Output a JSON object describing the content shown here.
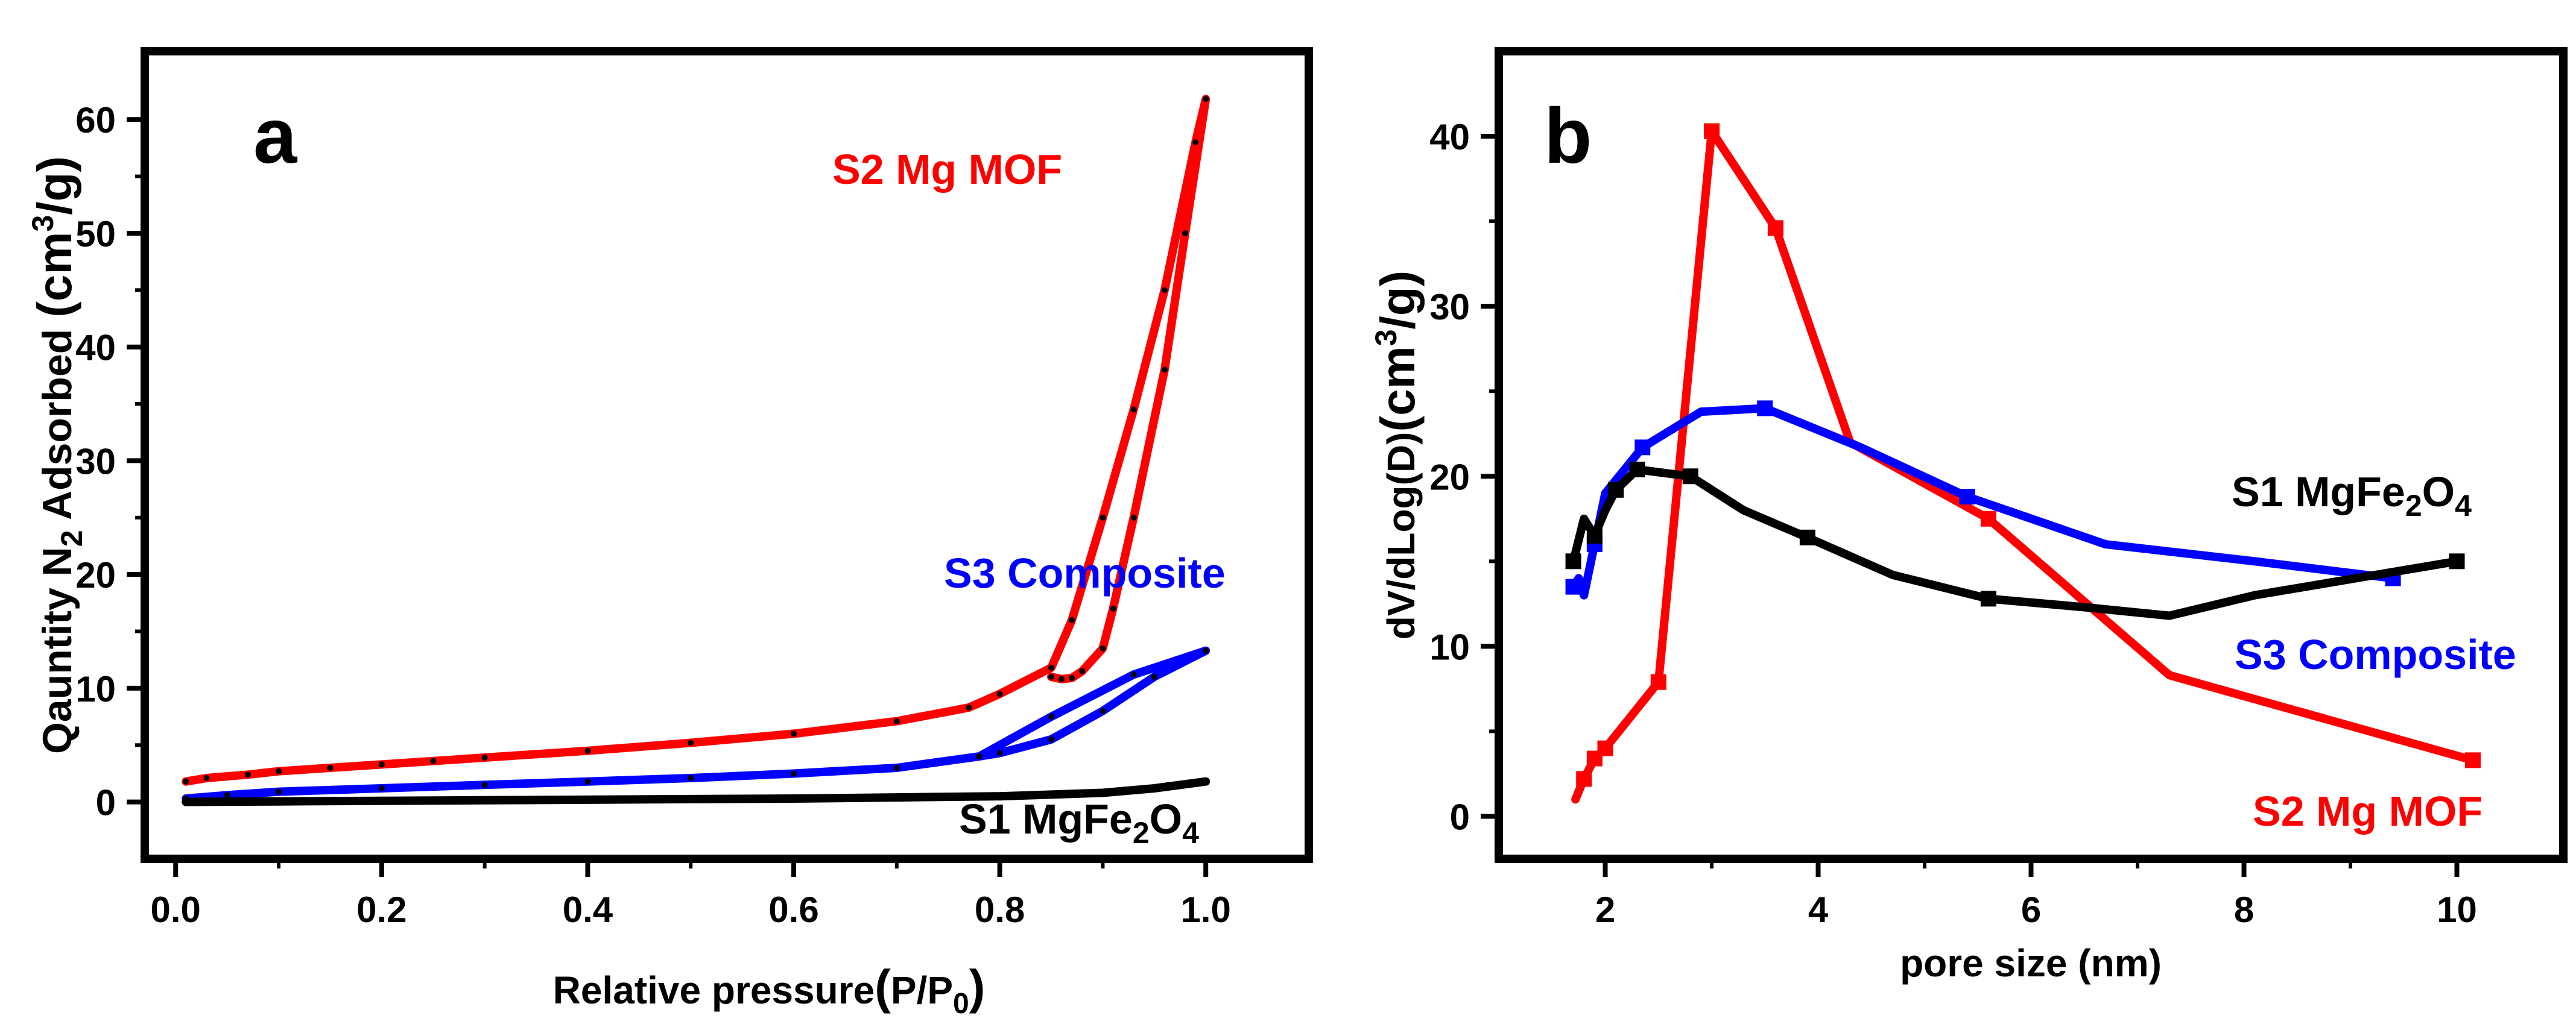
{
  "chart_data": [
    {
      "panel": "a",
      "type": "line",
      "title": "",
      "panel_label": "a",
      "xlabel": "Relative pressure(P/P0)",
      "xlabel_parts": {
        "main": "Relative pressure",
        "open": "(",
        "p": "P/P",
        "sub": "0",
        "close": ")"
      },
      "ylabel": "Qauntity  N2 Adsorbed (cm3/g)",
      "ylabel_parts": {
        "a": "Qauntity  N",
        "sub": "2",
        "b": " Adsorbed ",
        "c": "(cm",
        "sup": "3",
        "d": "/g)"
      },
      "xlim": [
        -0.03,
        1.1
      ],
      "ylim": [
        -5,
        66
      ],
      "xticks": [
        "0.0",
        "0.2",
        "0.4",
        "0.6",
        "0.8",
        "1.0"
      ],
      "yticks": [
        "0",
        "10",
        "20",
        "30",
        "40",
        "50",
        "60"
      ],
      "series": [
        {
          "name": "S2 Mg MOF",
          "label": "S2 Mg MOF",
          "color": "#ff0000",
          "x": [
            0.01,
            0.03,
            0.07,
            0.1,
            0.15,
            0.2,
            0.25,
            0.3,
            0.4,
            0.5,
            0.6,
            0.7,
            0.77,
            0.8,
            0.85,
            0.87,
            0.9,
            0.93,
            0.96,
            0.99,
            1.0,
            0.98,
            0.96,
            0.93,
            0.91,
            0.9,
            0.88,
            0.87,
            0.86,
            0.85
          ],
          "y": [
            1.8,
            2.1,
            2.4,
            2.7,
            3.0,
            3.3,
            3.6,
            3.9,
            4.5,
            5.2,
            6.0,
            7.1,
            8.3,
            9.5,
            11.8,
            16.0,
            25.0,
            34.5,
            45.0,
            58.0,
            61.8,
            50.0,
            38.0,
            25.0,
            17.0,
            13.5,
            11.5,
            10.9,
            10.8,
            11.0
          ]
        },
        {
          "name": "S3 Composite",
          "label": "S3 Composite",
          "color": "#0000ff",
          "x": [
            0.01,
            0.05,
            0.1,
            0.2,
            0.3,
            0.4,
            0.5,
            0.6,
            0.7,
            0.78,
            0.85,
            0.93,
            1.0,
            0.95,
            0.9,
            0.85,
            0.8,
            0.78
          ],
          "y": [
            0.3,
            0.6,
            0.9,
            1.2,
            1.5,
            1.8,
            2.1,
            2.5,
            3.0,
            4.0,
            7.5,
            11.2,
            13.3,
            11.0,
            8.0,
            5.5,
            4.3,
            4.0
          ]
        },
        {
          "name": "S1 MgFe2O4",
          "label_main": "S1 MgFe",
          "label_sub1": "2",
          "label_mid": "O",
          "label_sub2": "4",
          "color": "#000000",
          "x": [
            0.01,
            0.1,
            0.2,
            0.3,
            0.4,
            0.5,
            0.6,
            0.7,
            0.8,
            0.9,
            0.95,
            1.0
          ],
          "y": [
            0.0,
            0.05,
            0.1,
            0.15,
            0.2,
            0.25,
            0.3,
            0.4,
            0.5,
            0.8,
            1.2,
            1.8
          ]
        }
      ]
    },
    {
      "panel": "b",
      "type": "line",
      "title": "",
      "panel_label": "b",
      "xlabel": "pore size (nm)",
      "ylabel": "dV/dLog(D)(cm3/g)",
      "ylabel_parts": {
        "a": "dV/dLog(D)",
        "b": "(cm",
        "sup": "3",
        "c": "/g)"
      },
      "xlim": [
        1.0,
        11.0
      ],
      "ylim": [
        -2.5,
        45.0
      ],
      "xticks": [
        "2",
        "4",
        "6",
        "8",
        "10"
      ],
      "yticks": [
        "0",
        "10",
        "20",
        "30",
        "40"
      ],
      "series": [
        {
          "name": "S2 Mg MOF",
          "label": "S2 Mg MOF",
          "color": "#ff0000",
          "x": [
            1.72,
            1.8,
            1.9,
            2.0,
            2.5,
            3.0,
            3.6,
            4.3,
            5.6,
            7.3,
            10.15
          ],
          "y": [
            1.0,
            2.2,
            3.4,
            4.0,
            7.9,
            40.3,
            34.6,
            22.0,
            17.5,
            8.3,
            3.3
          ],
          "markers": [
            1,
            2,
            3,
            4,
            5,
            6,
            8,
            10
          ]
        },
        {
          "name": "S3 Composite",
          "label": "S3 Composite",
          "color": "#0000ff",
          "x": [
            1.7,
            1.75,
            1.8,
            1.9,
            2.0,
            2.35,
            2.9,
            3.5,
            4.4,
            5.4,
            6.7,
            8.1,
            9.4
          ],
          "y": [
            13.5,
            14.0,
            13.0,
            16.0,
            19.0,
            21.7,
            23.8,
            24.0,
            21.7,
            18.8,
            16.0,
            15.0,
            14.0
          ],
          "markers": [
            0,
            3,
            5,
            7,
            9,
            12
          ]
        },
        {
          "name": "S1 MgFe2O4",
          "label_main": "S1 MgFe",
          "label_sub1": "2",
          "label_mid": "O",
          "label_sub2": "4",
          "color": "#000000",
          "x": [
            1.7,
            1.8,
            1.9,
            2.0,
            2.1,
            2.3,
            2.8,
            3.3,
            3.9,
            4.7,
            5.6,
            6.5,
            7.3,
            8.1,
            10.0
          ],
          "y": [
            15.0,
            17.5,
            16.5,
            18.0,
            19.2,
            20.4,
            20.0,
            18.0,
            16.4,
            14.2,
            12.8,
            12.3,
            11.8,
            13.0,
            15.0
          ],
          "markers": [
            0,
            2,
            4,
            5,
            6,
            8,
            10,
            14
          ]
        }
      ]
    }
  ]
}
